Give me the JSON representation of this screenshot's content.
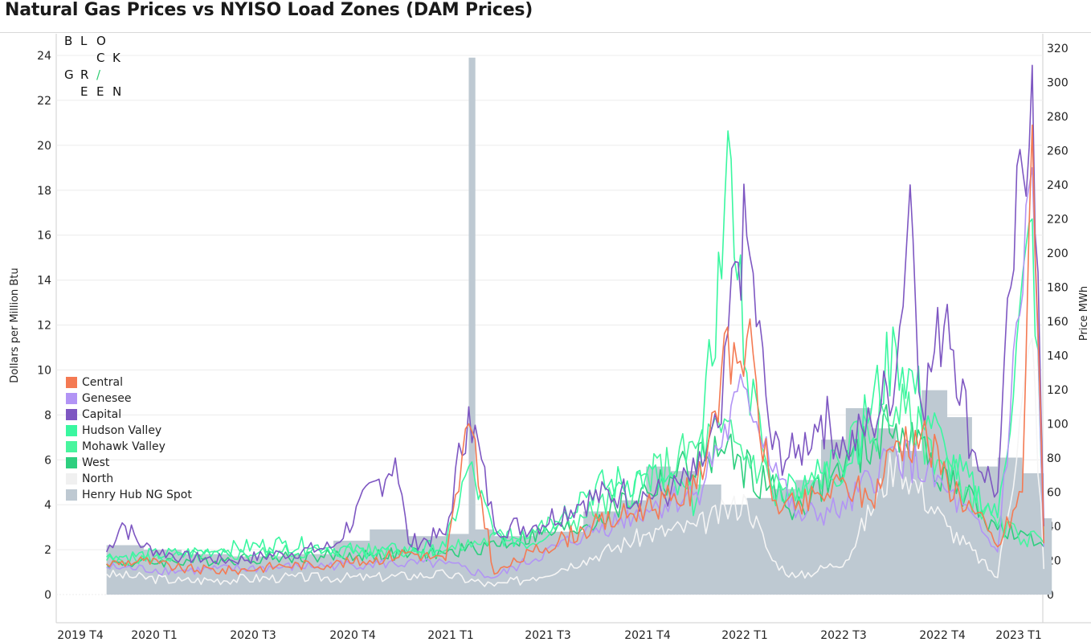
{
  "title": "Natural Gas Prices vs NYISO Load Zones (DAM Prices)",
  "logo": {
    "row1": [
      "B",
      "L",
      "O"
    ],
    "row2": [
      "C",
      "K"
    ],
    "row3": [
      "G",
      "R",
      "/"
    ],
    "row4": [
      "E",
      "E",
      "N"
    ],
    "accent": "#2ecc71"
  },
  "chart_data": {
    "type": "area",
    "title": "Natural Gas Prices vs NYISO Load Zones (DAM Prices)",
    "ylabel_left": "Dollars per Million Btu",
    "ylabel_right": "Price MWh",
    "ylim_left": [
      0,
      25
    ],
    "ylim_right": [
      0,
      320
    ],
    "yticks_left": [
      "0",
      "2",
      "4",
      "6",
      "8",
      "10",
      "12",
      "14",
      "16",
      "18",
      "20",
      "22",
      "24"
    ],
    "yticks_right": [
      "0",
      "20",
      "40",
      "60",
      "80",
      "100",
      "120",
      "140",
      "160",
      "180",
      "200",
      "220",
      "240",
      "260",
      "280",
      "300",
      "320"
    ],
    "xticks": [
      "2019 T4",
      "2020 T1",
      "2020 T3",
      "2020 T4",
      "2021 T1",
      "2021 T3",
      "2021 T4",
      "2022 T1",
      "2022 T3",
      "2022 T4",
      "2023 T1"
    ],
    "grid": true,
    "legend_position": "left",
    "henry_hub": {
      "name": "Henry Hub NG Spot",
      "color": "#bec9d2",
      "x": [
        "2019-12-01",
        "2020-01-15",
        "2020-03-01",
        "2020-05-01",
        "2020-07-01",
        "2020-09-01",
        "2020-10-15",
        "2020-12-01",
        "2021-01-15",
        "2021-02-12",
        "2021-02-20",
        "2021-03-15",
        "2021-05-01",
        "2021-07-01",
        "2021-08-15",
        "2021-09-15",
        "2021-10-15",
        "2021-11-15",
        "2021-12-15",
        "2022-01-15",
        "2022-02-15",
        "2022-03-15",
        "2022-04-15",
        "2022-05-15",
        "2022-06-15",
        "2022-07-15",
        "2022-08-15",
        "2022-09-15",
        "2022-10-15",
        "2022-11-15",
        "2022-12-15",
        "2023-01-10"
      ],
      "values": [
        2.2,
        2.0,
        1.8,
        1.7,
        1.8,
        2.4,
        2.9,
        2.6,
        2.7,
        23.9,
        2.9,
        2.6,
        2.8,
        3.7,
        4.2,
        5.7,
        5.5,
        4.9,
        4.0,
        4.3,
        4.7,
        5.1,
        6.9,
        8.3,
        7.4,
        6.4,
        9.1,
        7.9,
        5.7,
        6.1,
        5.4,
        3.4
      ]
    },
    "series": [
      {
        "name": "Central",
        "color": "#f47a53",
        "x": [
          "2019-12-01",
          "2020-01-15",
          "2020-03-01",
          "2020-05-01",
          "2020-07-01",
          "2020-09-01",
          "2020-10-15",
          "2020-12-01",
          "2021-01-15",
          "2021-02-12",
          "2021-03-15",
          "2021-05-01",
          "2021-07-01",
          "2021-08-15",
          "2021-09-15",
          "2021-10-15",
          "2021-11-15",
          "2021-12-15",
          "2022-01-15",
          "2022-02-15",
          "2022-03-15",
          "2022-04-15",
          "2022-05-15",
          "2022-06-15",
          "2022-07-15",
          "2022-08-15",
          "2022-09-15",
          "2022-10-15",
          "2022-11-15",
          "2022-12-15",
          "2022-12-27",
          "2023-01-10"
        ],
        "values": [
          18,
          20,
          15,
          14,
          17,
          18,
          20,
          25,
          20,
          100,
          12,
          25,
          38,
          45,
          52,
          55,
          62,
          130,
          150,
          55,
          50,
          58,
          65,
          55,
          90,
          95,
          68,
          50,
          28,
          60,
          275,
          30
        ]
      },
      {
        "name": "Genesee",
        "color": "#b294f5",
        "x": [
          "2019-12-01",
          "2020-03-01",
          "2020-07-01",
          "2020-10-15",
          "2021-01-15",
          "2021-03-15",
          "2021-07-01",
          "2021-09-15",
          "2021-11-15",
          "2022-01-15",
          "2022-03-15",
          "2022-05-15",
          "2022-07-15",
          "2022-09-15",
          "2022-11-15",
          "2022-12-27",
          "2023-01-10"
        ],
        "values": [
          16,
          14,
          16,
          18,
          18,
          10,
          35,
          50,
          60,
          120,
          45,
          50,
          85,
          60,
          25,
          250,
          28
        ]
      },
      {
        "name": "Capital",
        "color": "#7e57c2",
        "x": [
          "2019-12-01",
          "2019-12-20",
          "2020-01-15",
          "2020-03-01",
          "2020-05-01",
          "2020-07-01",
          "2020-09-01",
          "2020-11-15",
          "2020-12-01",
          "2021-01-15",
          "2021-02-12",
          "2021-03-15",
          "2021-05-01",
          "2021-07-01",
          "2021-08-15",
          "2021-09-15",
          "2021-10-15",
          "2021-11-15",
          "2021-12-15",
          "2022-01-01",
          "2022-01-15",
          "2022-02-15",
          "2022-03-15",
          "2022-04-15",
          "2022-05-15",
          "2022-06-15",
          "2022-07-15",
          "2022-08-01",
          "2022-08-15",
          "2022-09-15",
          "2022-10-15",
          "2022-11-15",
          "2022-12-01",
          "2022-12-27",
          "2023-01-10"
        ],
        "values": [
          25,
          42,
          28,
          22,
          20,
          24,
          28,
          80,
          30,
          35,
          110,
          40,
          40,
          55,
          60,
          58,
          60,
          70,
          100,
          195,
          210,
          85,
          80,
          105,
          85,
          100,
          130,
          240,
          110,
          170,
          85,
          60,
          180,
          310,
          40
        ]
      },
      {
        "name": "Hudson Valley",
        "color": "#3af7a0",
        "x": [
          "2019-12-01",
          "2020-03-01",
          "2020-07-01",
          "2020-10-15",
          "2021-01-15",
          "2021-02-12",
          "2021-03-15",
          "2021-05-01",
          "2021-07-01",
          "2021-09-15",
          "2021-11-15",
          "2021-12-27",
          "2022-01-15",
          "2022-02-15",
          "2022-03-15",
          "2022-05-15",
          "2022-07-15",
          "2022-09-15",
          "2022-11-15",
          "2022-12-27",
          "2023-01-10"
        ],
        "values": [
          22,
          24,
          30,
          25,
          28,
          75,
          35,
          30,
          60,
          70,
          55,
          255,
          130,
          60,
          65,
          75,
          145,
          80,
          45,
          220,
          35
        ]
      },
      {
        "name": "Mohawk Valley",
        "color": "#48f59e",
        "x": [
          "2019-12-01",
          "2020-07-01",
          "2021-01-15",
          "2021-07-01",
          "2021-12-15",
          "2022-03-15",
          "2022-07-15",
          "2022-11-15",
          "2023-01-10"
        ],
        "values": [
          20,
          25,
          26,
          45,
          95,
          55,
          110,
          40,
          30
        ]
      },
      {
        "name": "West",
        "color": "#2ecf7f",
        "x": [
          "2019-12-01",
          "2020-07-01",
          "2021-01-15",
          "2021-07-01",
          "2021-12-15",
          "2022-03-15",
          "2022-07-15",
          "2022-11-15",
          "2023-01-10"
        ],
        "values": [
          18,
          22,
          24,
          40,
          85,
          50,
          100,
          38,
          28
        ]
      },
      {
        "name": "North",
        "color": "#f5f5f5",
        "x": [
          "2019-12-01",
          "2020-03-01",
          "2020-07-01",
          "2020-10-15",
          "2021-01-15",
          "2021-03-15",
          "2021-05-01",
          "2021-07-01",
          "2021-09-15",
          "2021-11-15",
          "2022-01-15",
          "2022-02-15",
          "2022-03-15",
          "2022-05-15",
          "2022-07-15",
          "2022-09-15",
          "2022-11-15",
          "2022-12-27",
          "2023-01-10"
        ],
        "values": [
          12,
          8,
          10,
          10,
          12,
          5,
          10,
          20,
          35,
          40,
          55,
          20,
          10,
          20,
          80,
          40,
          10,
          150,
          15
        ]
      }
    ],
    "legend": [
      {
        "name": "Central",
        "color": "#f47a53"
      },
      {
        "name": "Genesee",
        "color": "#b294f5"
      },
      {
        "name": "Capital",
        "color": "#7e57c2"
      },
      {
        "name": "Hudson Valley",
        "color": "#3af7a0"
      },
      {
        "name": "Mohawk Valley",
        "color": "#48f59e"
      },
      {
        "name": "West",
        "color": "#2ecf7f"
      },
      {
        "name": "North",
        "color": "#f0f0f0"
      },
      {
        "name": "Henry Hub NG Spot",
        "color": "#bec9d2"
      }
    ]
  }
}
